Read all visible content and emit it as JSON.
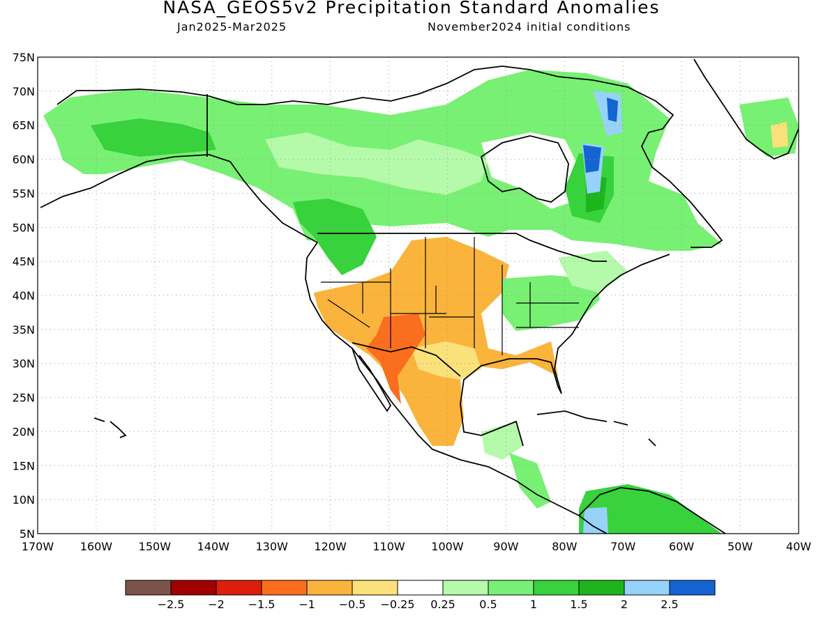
{
  "header": {
    "title": "NASA_GEOS5v2 Precipitation Standard Anomalies",
    "period": "Jan2025-Mar2025",
    "init": "November2024 initial conditions"
  },
  "axes": {
    "lat_labels": [
      "75N",
      "70N",
      "65N",
      "60N",
      "55N",
      "50N",
      "45N",
      "40N",
      "35N",
      "30N",
      "25N",
      "20N",
      "15N",
      "10N",
      "5N"
    ],
    "lon_labels": [
      "170W",
      "160W",
      "150W",
      "140W",
      "130W",
      "120W",
      "110W",
      "100W",
      "90W",
      "80W",
      "70W",
      "60W",
      "50W",
      "40W"
    ]
  },
  "colorbar": {
    "colors": [
      "#7b5449",
      "#a00000",
      "#dc1e0a",
      "#fa6e1e",
      "#fab43c",
      "#fae17a",
      "#ffffff",
      "#b4faaa",
      "#78f073",
      "#37d23c",
      "#1eb41e",
      "#96d2fa",
      "#1464d2"
    ],
    "tick_labels": [
      "-2.5",
      "-2",
      "-1.5",
      "-1",
      "-0.5",
      "-0.25",
      "0.25",
      "0.5",
      "1",
      "1.5",
      "2",
      "2.5"
    ]
  },
  "map_colors": {
    "ocean": "#ffffff",
    "coast": "#000000",
    "grid": "#999999"
  }
}
